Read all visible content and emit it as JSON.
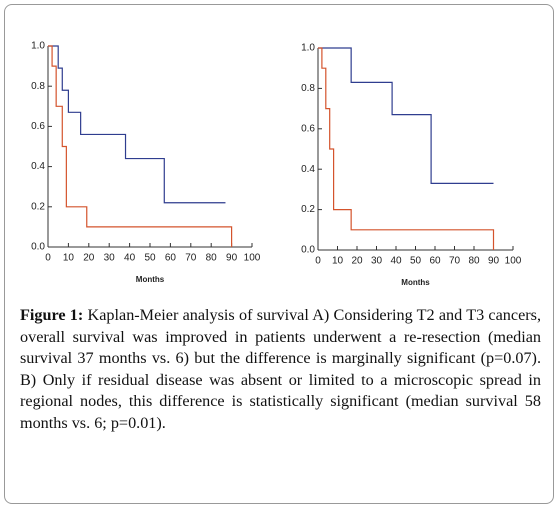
{
  "chart_data": [
    {
      "type": "line",
      "step": true,
      "xlabel": "Months",
      "xlim": [
        0,
        100
      ],
      "xticks": [
        0,
        10,
        20,
        30,
        40,
        50,
        60,
        70,
        80,
        90,
        100
      ],
      "ylim": [
        0,
        1
      ],
      "yticks": [
        {
          "value": 0,
          "label": "0.0"
        },
        0.2,
        0.4,
        0.6,
        0.8,
        {
          "value": 1,
          "label": "1.0"
        }
      ],
      "series": [
        {
          "color": "#2f3d8f",
          "x": [
            0,
            5,
            7,
            10,
            16,
            38,
            57,
            87
          ],
          "values": [
            1,
            0.89,
            0.78,
            0.67,
            0.56,
            0.44,
            0.22,
            0.22
          ]
        },
        {
          "color": "#d4532c",
          "x": [
            0,
            2,
            4,
            7,
            9,
            19,
            90
          ],
          "values": [
            1,
            0.9,
            0.7,
            0.5,
            0.2,
            0.1,
            0
          ]
        }
      ]
    },
    {
      "type": "line",
      "step": true,
      "xlabel": "Months",
      "xlim": [
        0,
        100
      ],
      "xticks": [
        0,
        10,
        20,
        30,
        40,
        50,
        60,
        70,
        80,
        90,
        100
      ],
      "ylim": [
        0,
        1
      ],
      "yticks": [
        {
          "value": 0,
          "label": "0.0"
        },
        0.2,
        0.4,
        0.6,
        0.8,
        {
          "value": 1,
          "label": "1.0"
        }
      ],
      "series": [
        {
          "color": "#2f3d8f",
          "x": [
            0,
            17,
            38,
            58,
            90
          ],
          "values": [
            1,
            0.83,
            0.67,
            0.33,
            0.33
          ]
        },
        {
          "color": "#d4532c",
          "x": [
            0,
            2,
            4,
            6,
            8,
            17,
            90
          ],
          "values": [
            1,
            0.9,
            0.7,
            0.5,
            0.2,
            0.1,
            0
          ]
        }
      ]
    }
  ],
  "caption": {
    "label": "Figure 1:",
    "text": "Kaplan-Meier analysis of survival A) Considering T2 and T3 cancers, overall survival was improved in patients underwent a re-resection (median survival 37 months vs. 6) but the difference is marginally significant (p=0.07). B) Only if residual disease was absent or limited to a microscopic spread in regional nodes, this difference is statistically significant (median survival 58 months vs. 6; p=0.01)."
  }
}
